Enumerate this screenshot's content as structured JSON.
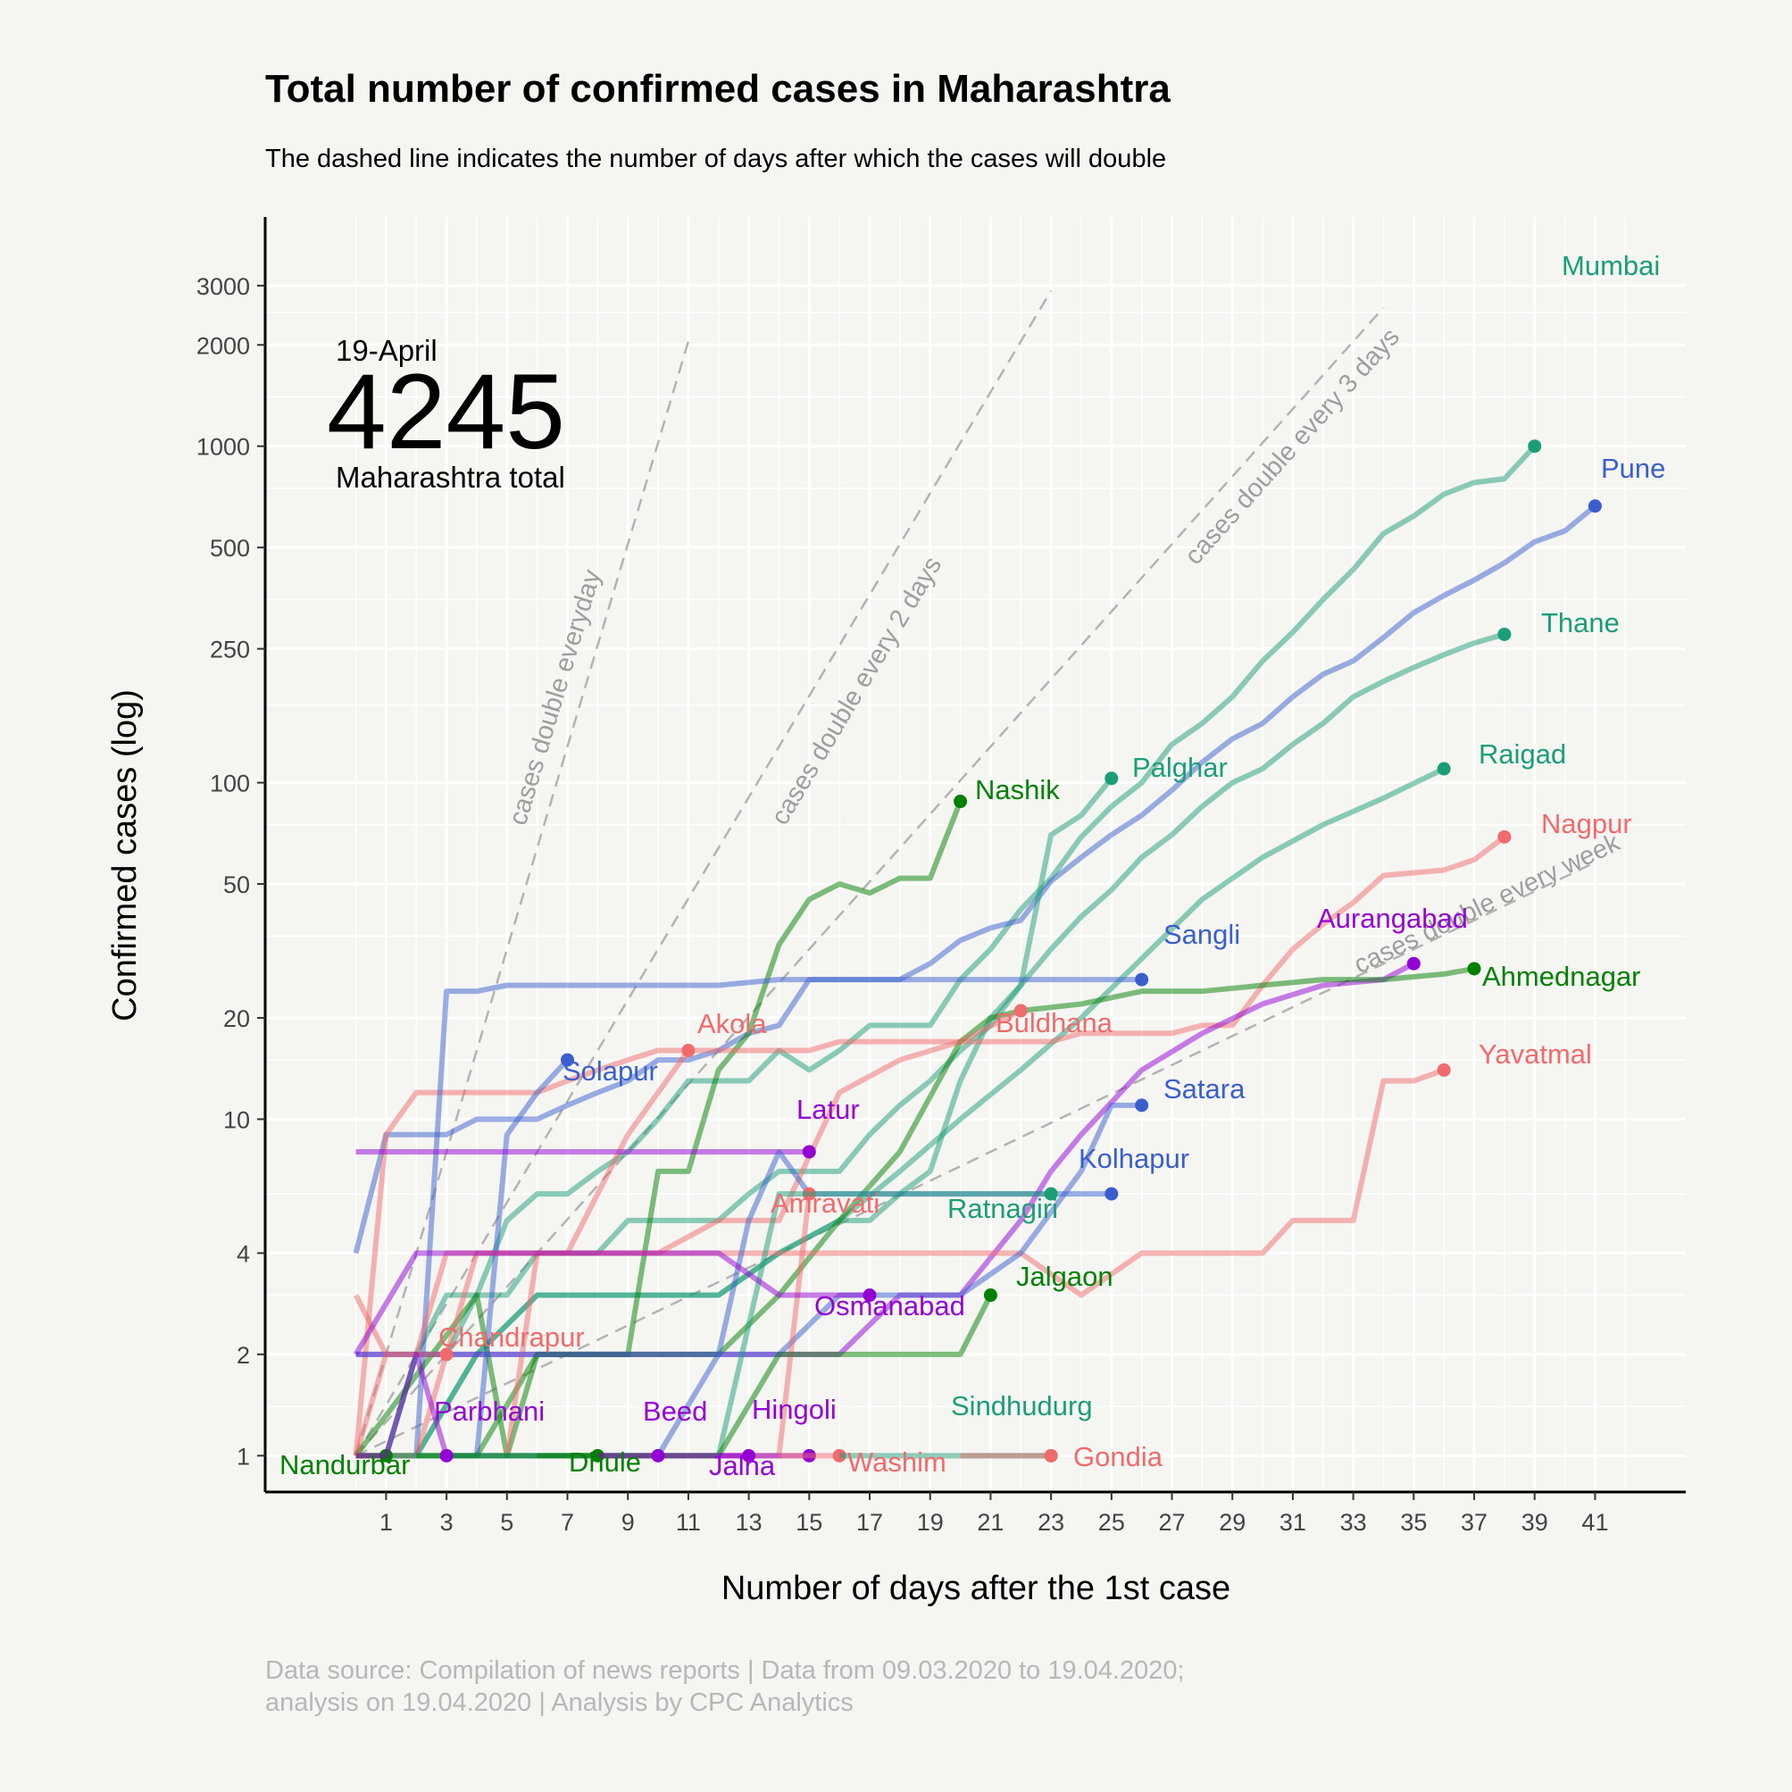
{
  "chart_data": {
    "type": "line",
    "title": "Total number of confirmed cases in Maharashtra",
    "subtitle": "The dashed line indicates the number of days after which the cases will double",
    "xlabel": "Number of days after the 1st case",
    "ylabel": "Confirmed cases (log)",
    "y_scale": "log",
    "xlim": [
      -3,
      44
    ],
    "ylim": [
      0.78,
      4800
    ],
    "x_ticks": [
      1,
      3,
      5,
      7,
      9,
      11,
      13,
      15,
      17,
      19,
      21,
      23,
      25,
      27,
      29,
      31,
      33,
      35,
      37,
      39,
      41
    ],
    "y_ticks": [
      1,
      2,
      4,
      10,
      20,
      50,
      100,
      250,
      500,
      1000,
      2000,
      3000
    ],
    "grid": true,
    "legend": "none",
    "caption": [
      "Data source: Compilation of news reports | Data from 09.03.2020 to 19.04.2020;",
      "analysis on 19.04.2020 | Analysis by CPC Analytics"
    ],
    "annotation": {
      "date": "19-April",
      "total": "4245",
      "label": "Maharashtra total"
    },
    "doubling_lines": [
      {
        "label": "cases double everyday",
        "days": 1,
        "x_end": 11
      },
      {
        "label": "cases double every 2 days",
        "days": 2,
        "x_end": 23
      },
      {
        "label": "cases double every 3 days",
        "days": 3,
        "x_end": 34
      },
      {
        "label": "cases double every week",
        "days": 7,
        "x_end": 41
      }
    ],
    "series": [
      {
        "name": "Mumbai",
        "color": "#1b9e77",
        "x": [
          0,
          1,
          2,
          3,
          4,
          5,
          6,
          7,
          8,
          9,
          10,
          11,
          12,
          13,
          14,
          15,
          16,
          17,
          18,
          19,
          20,
          21,
          22,
          23,
          24,
          25,
          26,
          27,
          28,
          29,
          30,
          31,
          32,
          33,
          34,
          35,
          36,
          37,
          38,
          39
        ],
        "values": [
          1,
          1,
          2,
          3,
          3,
          5,
          6,
          6,
          7,
          8,
          10,
          13,
          13,
          13,
          16,
          14,
          16,
          19,
          19,
          19,
          26,
          32,
          42,
          52,
          69,
          85,
          100,
          130,
          150,
          180,
          230,
          280,
          350,
          430,
          550,
          620,
          720,
          780,
          800,
          1000
        ]
      },
      {
        "name": "Pune",
        "color": "#3a5fcd",
        "x": [
          0,
          1,
          2,
          3,
          4,
          5,
          6,
          7,
          8,
          9,
          10,
          11,
          12,
          13,
          14,
          15,
          16,
          17,
          18,
          19,
          20,
          21,
          22,
          23,
          24,
          25,
          26,
          27,
          28,
          29,
          30,
          31,
          32,
          33,
          34,
          35,
          36,
          37,
          38,
          39,
          40,
          41
        ],
        "values": [
          4,
          9,
          9,
          9,
          10,
          10,
          10,
          11,
          12,
          13,
          15,
          15,
          16,
          18,
          19,
          26,
          26,
          26,
          26,
          29,
          34,
          37,
          39,
          51,
          60,
          70,
          80,
          95,
          115,
          135,
          150,
          180,
          210,
          230,
          270,
          320,
          360,
          400,
          450,
          520,
          560,
          664
        ]
      },
      {
        "name": "Thane",
        "color": "#1b9e77",
        "x": [
          0,
          1,
          2,
          3,
          4,
          5,
          6,
          7,
          8,
          9,
          10,
          11,
          12,
          13,
          14,
          15,
          16,
          17,
          18,
          19,
          20,
          21,
          22,
          23,
          24,
          25,
          26,
          27,
          28,
          29,
          30,
          31,
          32,
          33,
          34,
          35,
          36,
          37,
          38
        ],
        "values": [
          1,
          1,
          2,
          2,
          3,
          3,
          4,
          4,
          4,
          5,
          5,
          5,
          5,
          6,
          7,
          7,
          7,
          9,
          11,
          13,
          16,
          19,
          25,
          32,
          40,
          48,
          60,
          70,
          85,
          100,
          110,
          130,
          150,
          180,
          200,
          220,
          240,
          260,
          276
        ]
      },
      {
        "name": "Raigad",
        "color": "#1b9e77",
        "x": [
          2,
          4,
          6,
          8,
          10,
          12,
          14,
          16,
          18,
          20,
          22,
          24,
          26,
          28,
          30,
          32,
          34,
          36
        ],
        "values": [
          1,
          2,
          3,
          3,
          3,
          3,
          4,
          5,
          7,
          10,
          14,
          20,
          30,
          45,
          60,
          75,
          90,
          110
        ]
      },
      {
        "name": "Palghar",
        "color": "#1b9e77",
        "x": [
          0,
          2,
          4,
          6,
          8,
          10,
          12,
          14,
          16,
          17,
          18,
          19,
          20,
          21,
          22,
          23,
          24,
          25
        ],
        "values": [
          1,
          1,
          2,
          3,
          3,
          3,
          3,
          4,
          5,
          5,
          6,
          7,
          13,
          20,
          25,
          70,
          80,
          103
        ]
      },
      {
        "name": "Nashik",
        "color": "#008000",
        "x": [
          1,
          2,
          4,
          6,
          8,
          9,
          10,
          11,
          12,
          13,
          14,
          15,
          16,
          17,
          18,
          19,
          20
        ],
        "values": [
          1,
          1,
          1,
          2,
          2,
          2,
          7,
          7,
          14,
          18,
          33,
          45,
          50,
          47,
          52,
          52,
          88
        ]
      },
      {
        "name": "Nagpur",
        "color": "#f06b6b",
        "x": [
          0,
          1,
          2,
          3,
          4,
          5,
          6,
          7,
          8,
          9,
          10,
          11,
          12,
          13,
          14,
          15,
          16,
          17,
          18,
          19,
          20,
          21,
          22,
          23,
          24,
          25,
          26,
          27,
          28,
          29,
          30,
          31,
          32,
          33,
          34,
          35,
          36,
          37,
          38
        ],
        "values": [
          1,
          9,
          12,
          12,
          12,
          12,
          12,
          13,
          14,
          15,
          16,
          16,
          16,
          16,
          16,
          16,
          17,
          17,
          17,
          17,
          17,
          17,
          17,
          17,
          18,
          18,
          18,
          18,
          19,
          19,
          25,
          32,
          38,
          44,
          53,
          54,
          55,
          59,
          69
        ]
      },
      {
        "name": "Sangli",
        "color": "#3a5fcd",
        "x": [
          2,
          3,
          4,
          5,
          6,
          8,
          10,
          12,
          14,
          16,
          18,
          20,
          22,
          24,
          26
        ],
        "values": [
          1,
          24,
          24,
          25,
          25,
          25,
          25,
          25,
          26,
          26,
          26,
          26,
          26,
          26,
          26
        ]
      },
      {
        "name": "Aurangabad",
        "color": "#9400d3",
        "x": [
          0,
          1,
          2,
          3,
          4,
          6,
          8,
          10,
          12,
          14,
          16,
          18,
          20,
          22,
          23,
          24,
          26,
          28,
          30,
          32,
          34,
          35
        ],
        "values": [
          2,
          2,
          2,
          2,
          2,
          2,
          2,
          2,
          2,
          2,
          2,
          3,
          3,
          5,
          7,
          9,
          14,
          18,
          22,
          25,
          26,
          29
        ]
      },
      {
        "name": "Ahmednagar",
        "color": "#008000",
        "x": [
          0,
          4,
          5,
          6,
          8,
          10,
          12,
          14,
          16,
          18,
          20,
          21,
          22,
          24,
          26,
          28,
          30,
          32,
          34,
          36,
          37
        ],
        "values": [
          1,
          3,
          1,
          2,
          2,
          2,
          2,
          3,
          5,
          8,
          17,
          20,
          21,
          22,
          24,
          24,
          25,
          26,
          26,
          27,
          28
        ]
      },
      {
        "name": "Akola",
        "color": "#f06b6b",
        "x": [
          5,
          6,
          7,
          8,
          9,
          10,
          11
        ],
        "values": [
          1,
          4,
          4,
          6,
          9,
          12,
          16
        ]
      },
      {
        "name": "Solapur",
        "color": "#3a5fcd",
        "x": [
          4,
          5,
          6,
          7
        ],
        "values": [
          1,
          9,
          12,
          15
        ]
      },
      {
        "name": "Buldhana",
        "color": "#f06b6b",
        "x": [
          0,
          2,
          4,
          6,
          8,
          10,
          12,
          14,
          16,
          18,
          20,
          22
        ],
        "values": [
          1,
          1,
          4,
          4,
          4,
          4,
          5,
          5,
          12,
          15,
          17,
          21
        ]
      },
      {
        "name": "Yavatmal",
        "color": "#f06b6b",
        "x": [
          0,
          1,
          2,
          3,
          4,
          6,
          8,
          10,
          12,
          14,
          16,
          18,
          20,
          22,
          24,
          26,
          28,
          30,
          31,
          32,
          33,
          34,
          35,
          36
        ],
        "values": [
          3,
          2,
          2,
          4,
          4,
          4,
          4,
          4,
          4,
          4,
          4,
          4,
          4,
          4,
          3,
          4,
          4,
          4,
          5,
          5,
          5,
          13,
          13,
          14
        ]
      },
      {
        "name": "Satara",
        "color": "#3a5fcd",
        "x": [
          0,
          2,
          4,
          6,
          8,
          10,
          12,
          14,
          16,
          18,
          20,
          22,
          24,
          25,
          26
        ],
        "values": [
          2,
          2,
          2,
          2,
          2,
          2,
          2,
          2,
          3,
          3,
          3,
          4,
          7,
          11,
          11
        ]
      },
      {
        "name": "Latur",
        "color": "#9400d3",
        "x": [
          0,
          2,
          4,
          6,
          8,
          10,
          12,
          14,
          15
        ],
        "values": [
          8,
          8,
          8,
          8,
          8,
          8,
          8,
          8,
          8
        ]
      },
      {
        "name": "Kolhapur",
        "color": "#3a5fcd",
        "x": [
          3,
          4,
          6,
          8,
          10,
          12,
          13,
          14,
          15,
          16,
          17,
          18,
          19,
          20,
          21,
          22,
          23,
          24,
          25
        ],
        "values": [
          1,
          1,
          1,
          1,
          1,
          2,
          5,
          8,
          6,
          6,
          6,
          6,
          6,
          6,
          6,
          6,
          6,
          6,
          6
        ]
      },
      {
        "name": "Amravati",
        "color": "#f06b6b",
        "x": [
          8,
          9,
          10,
          11,
          12,
          13,
          14,
          15
        ],
        "values": [
          1,
          1,
          1,
          1,
          1,
          1,
          1,
          6
        ]
      },
      {
        "name": "Ratnagiri",
        "color": "#1b9e77",
        "x": [
          1,
          2,
          4,
          6,
          8,
          10,
          12,
          14,
          16,
          18,
          20,
          22,
          23
        ],
        "values": [
          1,
          1,
          1,
          1,
          1,
          1,
          1,
          6,
          6,
          6,
          6,
          6,
          6
        ]
      },
      {
        "name": "Osmanabad",
        "color": "#9400d3",
        "x": [
          0,
          2,
          4,
          6,
          8,
          10,
          12,
          14,
          15,
          16,
          17
        ],
        "values": [
          2,
          4,
          4,
          4,
          4,
          4,
          4,
          3,
          3,
          3,
          3
        ]
      },
      {
        "name": "Jalgaon",
        "color": "#008000",
        "x": [
          2,
          4,
          6,
          8,
          10,
          12,
          14,
          16,
          18,
          20,
          21
        ],
        "values": [
          1,
          1,
          1,
          1,
          1,
          1,
          2,
          2,
          2,
          2,
          3
        ]
      },
      {
        "name": "Chandrapur",
        "color": "#f06b6b",
        "x": [
          0,
          1,
          2,
          3
        ],
        "values": [
          1,
          2,
          2,
          2
        ]
      },
      {
        "name": "Nandurbar",
        "color": "#008000",
        "x": [
          0,
          1
        ],
        "values": [
          1,
          1
        ]
      },
      {
        "name": "Parbhani",
        "color": "#9400d3",
        "x": [
          0,
          1,
          2,
          3
        ],
        "values": [
          1,
          1,
          2,
          1
        ]
      },
      {
        "name": "Dhule",
        "color": "#008000",
        "x": [
          6,
          7,
          8
        ],
        "values": [
          1,
          1,
          1
        ]
      },
      {
        "name": "Beed",
        "color": "#9400d3",
        "x": [
          8,
          9,
          10
        ],
        "values": [
          1,
          1,
          1
        ]
      },
      {
        "name": "Jalna",
        "color": "#9400d3",
        "x": [
          10,
          11,
          12,
          13
        ],
        "values": [
          1,
          1,
          1,
          1
        ]
      },
      {
        "name": "Hingoli",
        "color": "#9400d3",
        "x": [
          12,
          13,
          14,
          15
        ],
        "values": [
          1,
          1,
          1,
          1
        ]
      },
      {
        "name": "Washim",
        "color": "#f06b6b",
        "x": [
          14,
          15,
          16
        ],
        "values": [
          1,
          1,
          1
        ]
      },
      {
        "name": "Sindhudurg",
        "color": "#1b9e77",
        "x": [
          16,
          18,
          20,
          22,
          23
        ],
        "values": [
          1,
          1,
          1,
          1,
          1
        ]
      },
      {
        "name": "Gondia",
        "color": "#f06b6b",
        "x": [
          20,
          21,
          22,
          23
        ],
        "values": [
          1,
          1,
          1,
          1
        ]
      }
    ]
  }
}
